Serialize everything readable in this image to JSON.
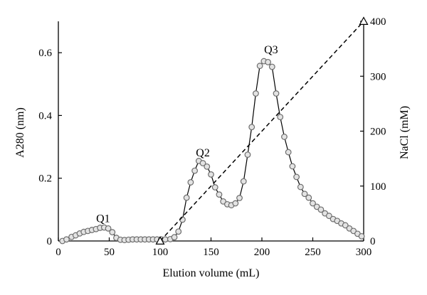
{
  "chart_data": {
    "type": "line",
    "xlabel": "Elution volume (mL)",
    "ylabel": "A280 (nm)",
    "y2label": "NaCl (mM)",
    "xlim": [
      0,
      300
    ],
    "ylim": [
      0,
      0.7
    ],
    "y2lim": [
      0,
      400
    ],
    "x_ticks": [
      0,
      50,
      100,
      150,
      200,
      250,
      300
    ],
    "x_tick_labels": [
      "0",
      "50",
      "100",
      "150",
      "200",
      "250",
      "300"
    ],
    "y_ticks": [
      0,
      0.2,
      0.4,
      0.6
    ],
    "y_tick_labels": [
      "0",
      "0.2",
      "0.4",
      "0.6"
    ],
    "y2_ticks": [
      0,
      100,
      200,
      300,
      400
    ],
    "y2_tick_labels": [
      "0",
      "100",
      "200",
      "300",
      "400"
    ],
    "series": [
      {
        "axis": "left",
        "marker": "circle",
        "x": [
          4,
          8,
          13,
          17,
          21,
          25,
          29,
          33,
          37,
          41,
          45,
          49,
          53,
          57,
          61,
          65,
          69,
          73,
          77,
          81,
          85,
          89,
          93,
          97,
          101,
          105,
          110,
          114,
          118,
          122,
          126,
          130,
          134,
          138,
          142,
          146,
          150,
          154,
          158,
          162,
          166,
          170,
          174,
          178,
          182,
          186,
          190,
          194,
          198,
          202,
          206,
          210,
          214,
          218,
          222,
          226,
          230,
          234,
          238,
          242,
          246,
          250,
          254,
          258,
          262,
          266,
          270,
          274,
          278,
          282,
          286,
          290,
          294,
          298
        ],
        "y": [
          0.0,
          0.005,
          0.013,
          0.018,
          0.024,
          0.029,
          0.032,
          0.035,
          0.038,
          0.042,
          0.043,
          0.04,
          0.028,
          0.01,
          0.004,
          0.003,
          0.004,
          0.005,
          0.005,
          0.005,
          0.005,
          0.005,
          0.005,
          0.005,
          0.005,
          0.005,
          0.006,
          0.012,
          0.03,
          0.068,
          0.138,
          0.187,
          0.224,
          0.255,
          0.248,
          0.237,
          0.212,
          0.171,
          0.148,
          0.126,
          0.117,
          0.114,
          0.12,
          0.137,
          0.19,
          0.275,
          0.363,
          0.47,
          0.558,
          0.573,
          0.57,
          0.555,
          0.47,
          0.395,
          0.332,
          0.283,
          0.238,
          0.204,
          0.172,
          0.15,
          0.138,
          0.12,
          0.109,
          0.1,
          0.088,
          0.08,
          0.07,
          0.064,
          0.056,
          0.05,
          0.04,
          0.032,
          0.023,
          0.015
        ]
      },
      {
        "axis": "right",
        "marker": "triangle",
        "line_style": "dashed",
        "x": [
          100,
          300
        ],
        "y": [
          0,
          400
        ]
      }
    ],
    "annotations": [
      {
        "text": "Q1",
        "x": 44,
        "y": 0.06
      },
      {
        "text": "Q2",
        "x": 142,
        "y": 0.27
      },
      {
        "text": "Q3",
        "x": 209,
        "y": 0.598
      }
    ]
  }
}
